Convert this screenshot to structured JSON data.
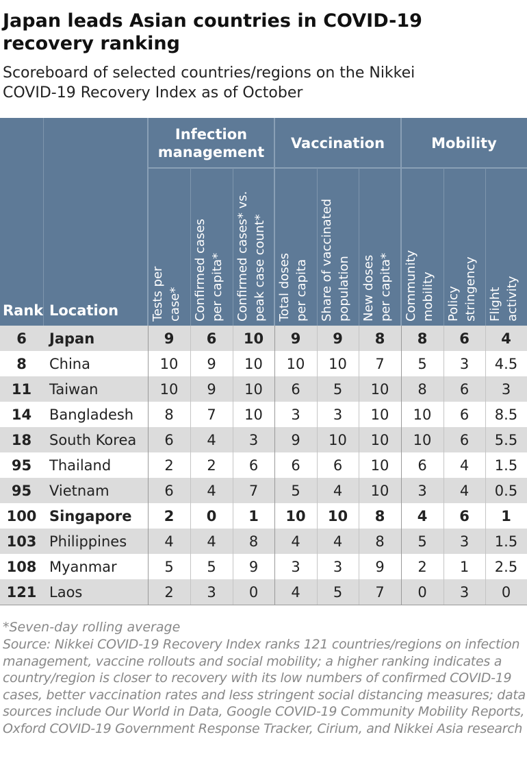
{
  "header": {
    "title": "Japan leads Asian countries in COVID-19 recovery ranking",
    "subtitle": "Scoreboard of selected countries/regions on the Nikkei COVID-19 Recovery Index as of October"
  },
  "table": {
    "rank_header": "Rank",
    "location_header": "Location",
    "groups": [
      {
        "label": "Infection management",
        "columns": [
          [
            "Tests per",
            "case*"
          ],
          [
            "Confirmed cases",
            "per capita*"
          ],
          [
            "Confirmed cases* vs.",
            "peak case count*"
          ]
        ]
      },
      {
        "label": "Vaccination",
        "columns": [
          [
            "Total doses",
            "per capita"
          ],
          [
            "Share of vaccinated",
            "population"
          ],
          [
            "New doses",
            "per capita*"
          ]
        ]
      },
      {
        "label": "Mobility",
        "columns": [
          [
            "Community",
            "mobility"
          ],
          [
            "Policy",
            "stringency"
          ],
          [
            "Flight",
            "activity"
          ]
        ]
      }
    ],
    "rows": [
      {
        "rank": 6,
        "location": "Japan",
        "bold": true,
        "scores": [
          9,
          6,
          10,
          9,
          9,
          8,
          8,
          6,
          4
        ]
      },
      {
        "rank": 8,
        "location": "China",
        "scores": [
          10,
          9,
          10,
          10,
          10,
          7,
          5,
          3,
          4.5
        ]
      },
      {
        "rank": 11,
        "location": "Taiwan",
        "scores": [
          10,
          9,
          10,
          6,
          5,
          10,
          8,
          6,
          3
        ]
      },
      {
        "rank": 14,
        "location": "Bangladesh",
        "scores": [
          8,
          7,
          10,
          3,
          3,
          10,
          10,
          6,
          8.5
        ]
      },
      {
        "rank": 18,
        "location": "South Korea",
        "scores": [
          6,
          4,
          3,
          9,
          10,
          10,
          10,
          6,
          5.5
        ]
      },
      {
        "rank": 95,
        "location": "Thailand",
        "scores": [
          2,
          2,
          6,
          6,
          6,
          10,
          6,
          4,
          1.5
        ]
      },
      {
        "rank": 95,
        "location": "Vietnam",
        "scores": [
          6,
          4,
          7,
          5,
          4,
          10,
          3,
          4,
          0.5
        ]
      },
      {
        "rank": 100,
        "location": "Singapore",
        "bold": true,
        "scores": [
          2,
          0,
          1,
          10,
          10,
          8,
          4,
          6,
          1
        ]
      },
      {
        "rank": 103,
        "location": "Philippines",
        "scores": [
          4,
          4,
          8,
          4,
          4,
          8,
          5,
          3,
          1.5
        ]
      },
      {
        "rank": 108,
        "location": "Myanmar",
        "scores": [
          5,
          5,
          9,
          3,
          3,
          9,
          2,
          1,
          2.5
        ]
      },
      {
        "rank": 121,
        "location": "Laos",
        "scores": [
          2,
          3,
          0,
          4,
          5,
          7,
          0,
          3,
          0
        ]
      }
    ]
  },
  "footer": {
    "footnote": "*Seven-day rolling average",
    "source": "Source: Nikkei COVID-19 Recovery Index ranks 121 countries/regions on infection management, vaccine rollouts and social mobility; a higher ranking indicates a country/region is closer to recovery with its low numbers of confirmed COVID-19 cases, better vaccination rates and less stringent social distancing measures; data sources include Our World in Data, Google COVID-19 Community Mobility Reports, Oxford COVID-19 Government Response Tracker, Cirium, and Nikkei Asia research"
  }
}
